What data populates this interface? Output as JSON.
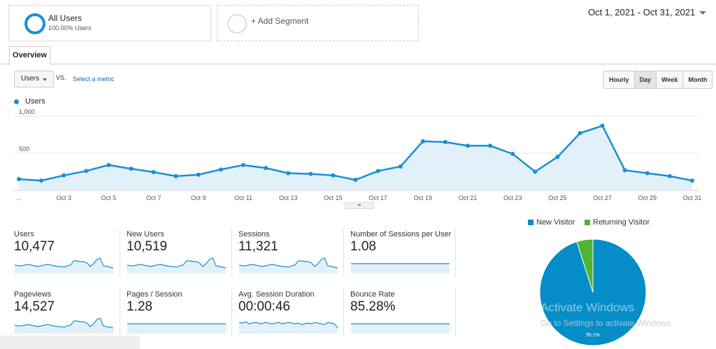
{
  "segment": {
    "title": "All Users",
    "subtitle": "100.00% Users"
  },
  "add_segment_label": "+ Add Segment",
  "date_range": "Oct 1, 2021 - Oct 31, 2021",
  "tab_overview": "Overview",
  "metric_select": "Users",
  "vs_label": "VS.",
  "select_metric_label": "Select a metric",
  "granularity": [
    {
      "label": "Hourly",
      "active": false
    },
    {
      "label": "Day",
      "active": true
    },
    {
      "label": "Week",
      "active": false
    },
    {
      "label": "Month",
      "active": false
    }
  ],
  "chart_data": {
    "type": "area",
    "series": [
      {
        "name": "Users",
        "values": [
          150,
          130,
          200,
          260,
          340,
          290,
          245,
          190,
          210,
          280,
          340,
          300,
          230,
          220,
          200,
          140,
          260,
          320,
          660,
          650,
          600,
          600,
          490,
          250,
          450,
          770,
          870,
          270,
          230,
          190,
          130
        ]
      }
    ],
    "x": [
      "Oct 1",
      "Oct 2",
      "Oct 3",
      "Oct 4",
      "Oct 5",
      "Oct 6",
      "Oct 7",
      "Oct 8",
      "Oct 9",
      "Oct 10",
      "Oct 11",
      "Oct 12",
      "Oct 13",
      "Oct 14",
      "Oct 15",
      "Oct 16",
      "Oct 17",
      "Oct 18",
      "Oct 19",
      "Oct 20",
      "Oct 21",
      "Oct 22",
      "Oct 23",
      "Oct 24",
      "Oct 25",
      "Oct 26",
      "Oct 27",
      "Oct 28",
      "Oct 29",
      "Oct 30",
      "Oct 31"
    ],
    "tick_labels": [
      "...",
      "Oct 3",
      "Oct 5",
      "Oct 7",
      "Oct 9",
      "Oct 11",
      "Oct 13",
      "Oct 15",
      "Oct 17",
      "Oct 19",
      "Oct 21",
      "Oct 23",
      "Oct 25",
      "Oct 27",
      "Oct 29",
      "Oct 31"
    ],
    "y_tick_labels": [
      "1,000",
      "500"
    ],
    "ylim": [
      0,
      1000
    ],
    "color": "#1a8fd2",
    "fill": "#e2f0f9",
    "grid": true
  },
  "kpis": [
    {
      "name": "Users",
      "value": "10,477"
    },
    {
      "name": "New Users",
      "value": "10,519"
    },
    {
      "name": "Sessions",
      "value": "11,321"
    },
    {
      "name": "Number of Sessions per User",
      "value": "1.08"
    },
    {
      "name": "Pageviews",
      "value": "14,527"
    },
    {
      "name": "Pages / Session",
      "value": "1.28"
    },
    {
      "name": "Avg. Session Duration",
      "value": "00:00:46"
    },
    {
      "name": "Bounce Rate",
      "value": "85.28%"
    }
  ],
  "pie": {
    "legend": [
      {
        "label": "New Visitor",
        "color": "#058dc7"
      },
      {
        "label": "Returning Visitor",
        "color": "#50b432"
      }
    ],
    "values": [
      95.1,
      4.9
    ],
    "label": "95.1%"
  },
  "watermark": {
    "line1": "Activate Windows",
    "line2": "Go to Settings to activate Windows."
  }
}
